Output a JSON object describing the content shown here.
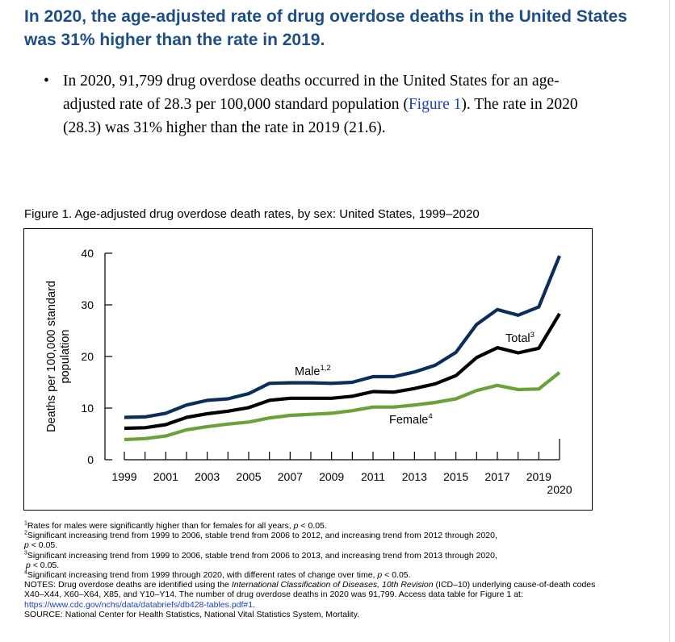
{
  "header": {
    "title": "In 2020, the age-adjusted rate of drug overdose deaths in the United States was 31% higher than the rate in 2019."
  },
  "bullets": {
    "item1": {
      "before": "In 2020, 91,799 drug overdose deaths occurred in the United States for an age-adjusted rate of 28.3 per 100,000 standard population (",
      "link": "Figure 1",
      "after": "). The rate in 2020 (28.3) was 31% higher than the rate in 2019 (21.6)."
    }
  },
  "figure": {
    "caption": "Figure 1. Age-adjusted drug overdose death rates, by sex: United States, 1999–2020"
  },
  "chart_data": {
    "type": "line",
    "title": "Figure 1. Age-adjusted drug overdose death rates, by sex: United States, 1999–2020",
    "ylabel": "Deaths per 100,000 standard population",
    "xlabel": "",
    "ylim": [
      0,
      40
    ],
    "yticks": [
      "0",
      "10",
      "20",
      "30",
      "40"
    ],
    "xlim": [
      1999,
      2020
    ],
    "xticks": [
      "1999",
      "2001",
      "2003",
      "2005",
      "2007",
      "2009",
      "2011",
      "2013",
      "2015",
      "2017",
      "2019",
      "2020"
    ],
    "x": [
      1999,
      2000,
      2001,
      2002,
      2003,
      2004,
      2005,
      2006,
      2007,
      2008,
      2009,
      2010,
      2011,
      2012,
      2013,
      2014,
      2015,
      2016,
      2017,
      2018,
      2019,
      2020
    ],
    "grid": false,
    "legend": "inline labels",
    "series": [
      {
        "name": "Male",
        "sup": "1,2",
        "color": "#0b2d5b",
        "values": [
          8.2,
          8.3,
          9.0,
          10.6,
          11.5,
          11.8,
          12.8,
          14.8,
          14.9,
          14.9,
          14.8,
          15.0,
          16.1,
          16.1,
          17.0,
          18.3,
          20.8,
          26.2,
          29.1,
          28.0,
          29.6,
          39.5
        ]
      },
      {
        "name": "Total",
        "sup": "3",
        "color": "#000000",
        "values": [
          6.1,
          6.2,
          6.8,
          8.2,
          8.9,
          9.4,
          10.1,
          11.5,
          11.9,
          11.9,
          11.9,
          12.3,
          13.2,
          13.1,
          13.8,
          14.7,
          16.3,
          19.8,
          21.7,
          20.7,
          21.6,
          28.3
        ]
      },
      {
        "name": "Female",
        "sup": "4",
        "color": "#6aa23a",
        "values": [
          3.9,
          4.1,
          4.6,
          5.8,
          6.4,
          6.9,
          7.3,
          8.1,
          8.6,
          8.8,
          9.0,
          9.5,
          10.2,
          10.2,
          10.6,
          11.1,
          11.8,
          13.4,
          14.4,
          13.6,
          13.7,
          16.9
        ]
      }
    ]
  },
  "notes": {
    "n1": {
      "sup": "1",
      "text": "Rates for males were significantly higher than for females for all years, ",
      "p": "p",
      "rest": " < 0.05."
    },
    "n2": {
      "sup": "2",
      "text": "Significant increasing trend from 1999 to 2006, stable trend from 2006 to 2012, and increasing trend from 2012 through 2020,",
      "p": "p",
      "rest": " < 0.05."
    },
    "n3": {
      "sup": "3",
      "text": "Significant increasing trend from 1999 to 2006, stable trend from 2006 to 2013, and increasing trend from 2013 through 2020,",
      "p": "p",
      "rest": " < 0.05."
    },
    "n4": {
      "sup": "4",
      "text": "Significant increasing trend from 1999 through 2020, with different rates of change over time, ",
      "p": "p",
      "rest": " < 0.05."
    },
    "notes_prefix": "NOTES: Drug overdose deaths are identified using the ",
    "notes_italic": "International Classification of Diseases, 10th Revision",
    "notes_body": " (ICD–10) underlying cause-of-death codes X40–X44, X60–X64, X85, and Y10–Y14. The number of drug overdose deaths in 2020 was 91,799. Access data table for Figure 1 at: ",
    "notes_link": "https://www.cdc.gov/nchs/data/databriefs/db428-tables.pdf#1",
    "notes_end": ".",
    "source": "SOURCE: National Center for Health Statistics, National Vital Statistics System, Mortality."
  }
}
